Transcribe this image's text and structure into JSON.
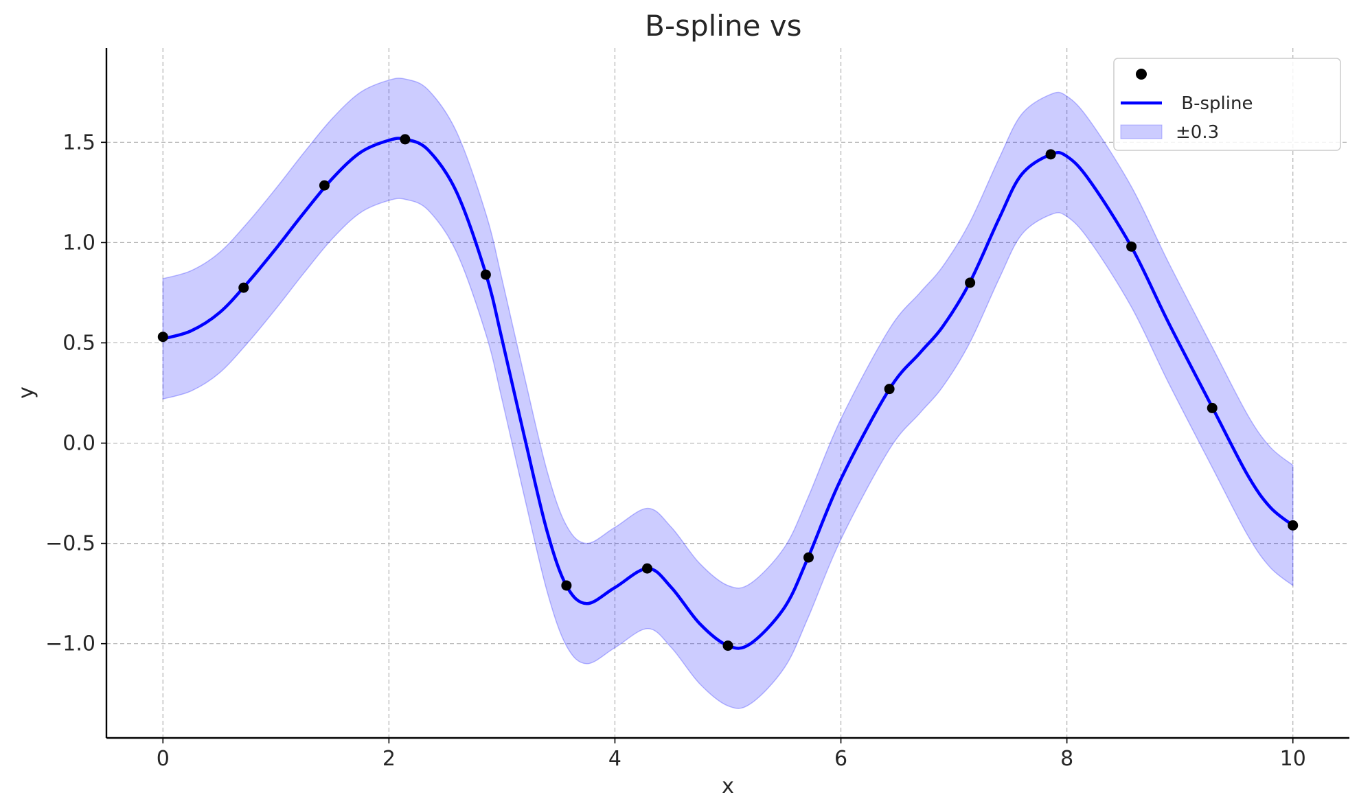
{
  "chart_data": {
    "type": "line",
    "title": "B-spline𒭑𒭑𒭑𒭑𒭑𒭑 vs 𒭑𒭑𒭑𒭑𒭑",
    "xlabel": "x",
    "ylabel": "y",
    "xlim": [
      -0.5,
      10.5
    ],
    "ylim": [
      -1.47,
      1.97
    ],
    "xticks": [
      0,
      2,
      4,
      6,
      8,
      10
    ],
    "xtick_labels": [
      "0",
      "2",
      "4",
      "6",
      "8",
      "10"
    ],
    "yticks": [
      -1.0,
      -0.5,
      0.0,
      0.5,
      1.0,
      1.5
    ],
    "ytick_labels": [
      "−1.0",
      "−0.5",
      "0.0",
      "0.5",
      "1.0",
      "1.5"
    ],
    "grid": true,
    "legend_position": "top-right",
    "band_halfwidth": 0.3,
    "series": [
      {
        "name": "𒭑𒭑𒭑𒭑𒭑",
        "kind": "scatter",
        "color": "#000000",
        "x": [
          0,
          0.714,
          1.429,
          2.143,
          2.857,
          3.571,
          4.286,
          5.0,
          5.714,
          6.429,
          7.143,
          7.857,
          8.571,
          9.286,
          10.0
        ],
        "y": [
          0.53,
          0.775,
          1.285,
          1.515,
          0.84,
          -0.71,
          -0.625,
          -1.01,
          -0.57,
          0.27,
          0.8,
          1.44,
          0.98,
          0.175,
          -0.41
        ]
      },
      {
        "name": "𒭑𒭑 B-spline 𒭑𒭑𒭑𒭑",
        "kind": "line",
        "color": "#0000ff",
        "x": [
          0,
          0.25,
          0.5,
          0.75,
          1.0,
          1.25,
          1.5,
          1.75,
          2.0,
          2.15,
          2.35,
          2.6,
          2.86,
          3.0,
          3.2,
          3.4,
          3.57,
          3.75,
          4.0,
          4.29,
          4.5,
          4.75,
          5.0,
          5.2,
          5.5,
          5.71,
          6.0,
          6.43,
          6.7,
          6.9,
          7.14,
          7.4,
          7.6,
          7.86,
          8.0,
          8.2,
          8.57,
          8.9,
          9.29,
          9.6,
          9.8,
          10.0
        ],
        "y": [
          0.52,
          0.56,
          0.65,
          0.8,
          0.97,
          1.15,
          1.32,
          1.45,
          1.51,
          1.515,
          1.46,
          1.25,
          0.84,
          0.52,
          0.03,
          -0.44,
          -0.71,
          -0.8,
          -0.72,
          -0.625,
          -0.72,
          -0.9,
          -1.01,
          -1.0,
          -0.82,
          -0.57,
          -0.18,
          0.27,
          0.45,
          0.58,
          0.8,
          1.12,
          1.34,
          1.44,
          1.43,
          1.31,
          0.98,
          0.6,
          0.175,
          -0.16,
          -0.32,
          -0.41
        ]
      },
      {
        "name": "𒭑𒭑𒭑𒭑𒭑𒭑±0.3𒭑",
        "kind": "band",
        "color": "#0000ff",
        "opacity": 0.2
      }
    ]
  }
}
